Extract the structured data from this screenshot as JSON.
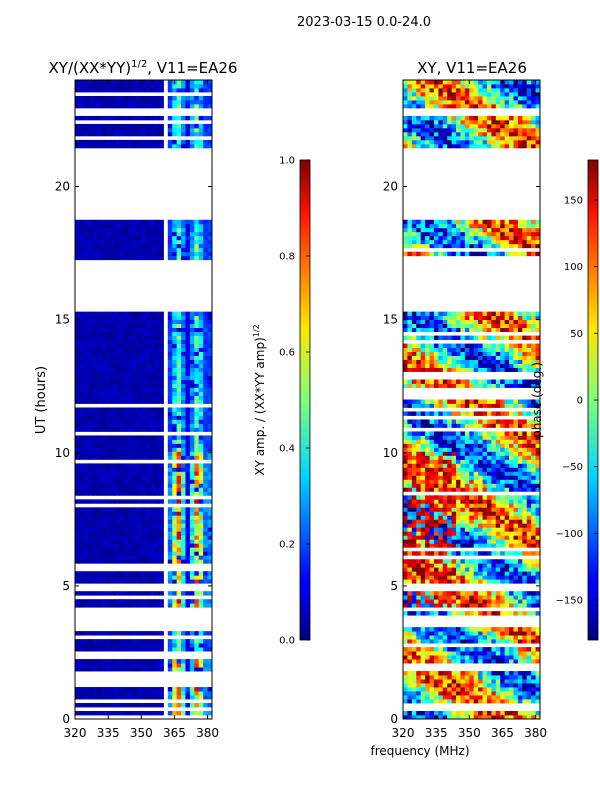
{
  "figure": {
    "suptitle": "2023-03-15 0.0-24.0",
    "xlabel": "frequency (MHz)"
  },
  "chart_data": [
    {
      "type": "heatmap",
      "title_main": "XY/(XX*YY)",
      "title_sup": "1/2",
      "title_tail": ", V11=EA26",
      "ylabel": "UT (hours)",
      "xlim": [
        320,
        382
      ],
      "ylim": [
        0,
        24
      ],
      "xticks": [
        320,
        335,
        350,
        365,
        380
      ],
      "yticks": [
        0,
        5,
        10,
        15,
        20
      ],
      "colorbar": {
        "label_main": "XY amp. / (XX*YY amp)",
        "label_sup": "1/2",
        "range": [
          0.0,
          1.0
        ],
        "ticks": [
          "0.0",
          "0.2",
          "0.4",
          "0.6",
          "0.8",
          "1.0"
        ]
      },
      "data_gaps_hours": [
        [
          3.5,
          3.9
        ],
        [
          15.3,
          17.2
        ],
        [
          18.8,
          21.4
        ],
        [
          22.6,
          22.9
        ]
      ],
      "flagged_freq_MHz": [
        360,
        362
      ],
      "color_scale": "jet"
    },
    {
      "type": "heatmap",
      "title": "XY, V11=EA26",
      "xlim": [
        320,
        382
      ],
      "ylim": [
        0,
        24
      ],
      "xticks": [
        320,
        335,
        350,
        365,
        380
      ],
      "yticks": [
        0,
        5,
        10,
        15,
        20
      ],
      "colorbar": {
        "label": "phase (deg.)",
        "range": [
          -180,
          180
        ],
        "ticks": [
          "-150",
          "-100",
          "-50",
          "0",
          "50",
          "100",
          "150"
        ]
      },
      "data_gaps_hours": [
        [
          3.5,
          3.9
        ],
        [
          15.3,
          17.2
        ],
        [
          18.8,
          21.4
        ],
        [
          22.6,
          22.9
        ]
      ],
      "color_scale": "jet"
    }
  ]
}
